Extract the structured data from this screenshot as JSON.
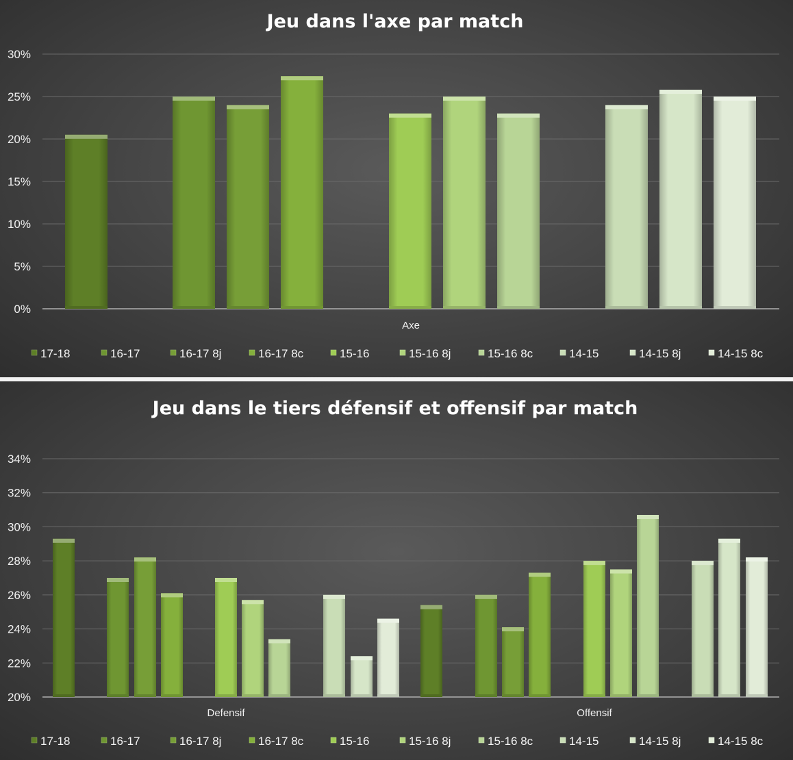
{
  "chart_data": [
    {
      "type": "bar",
      "title": "Jeu dans l'axe par match",
      "categories": [
        "Axe"
      ],
      "ylim": [
        0,
        0.3
      ],
      "yticks": [
        {
          "value": 0,
          "label": "0%"
        },
        {
          "value": 0.05,
          "label": "5%"
        },
        {
          "value": 0.1,
          "label": "10%"
        },
        {
          "value": 0.15,
          "label": "15%"
        },
        {
          "value": 0.2,
          "label": "20%"
        },
        {
          "value": 0.25,
          "label": "25%"
        },
        {
          "value": 0.3,
          "label": "30%"
        }
      ],
      "grid": true,
      "legend_position": "bottom",
      "series": [
        {
          "name": "17-18",
          "values": [
            0.205
          ],
          "color": "#5e7f27"
        },
        {
          "name": "16-17",
          "values": [
            0.25
          ],
          "color": "#6f9632"
        },
        {
          "name": "16-17 8j",
          "values": [
            0.24
          ],
          "color": "#779e37"
        },
        {
          "name": "16-17 8c",
          "values": [
            0.274
          ],
          "color": "#85b03c"
        },
        {
          "name": "15-16",
          "values": [
            0.23
          ],
          "color": "#9fcc55"
        },
        {
          "name": "15-16 8j",
          "values": [
            0.25
          ],
          "color": "#b0d47c"
        },
        {
          "name": "15-16 8c",
          "values": [
            0.23
          ],
          "color": "#b8d596"
        },
        {
          "name": "14-15",
          "values": [
            0.24
          ],
          "color": "#c9ddb6"
        },
        {
          "name": "14-15 8j",
          "values": [
            0.258
          ],
          "color": "#d6e6c8"
        },
        {
          "name": "14-15 8c",
          "values": [
            0.25
          ],
          "color": "#e2ecd8"
        }
      ]
    },
    {
      "type": "bar",
      "title": "Jeu dans le tiers défensif et offensif par match",
      "categories": [
        "Defensif",
        "Offensif"
      ],
      "ylim": [
        0.2,
        0.34
      ],
      "yticks": [
        {
          "value": 0.2,
          "label": "20%"
        },
        {
          "value": 0.22,
          "label": "22%"
        },
        {
          "value": 0.24,
          "label": "24%"
        },
        {
          "value": 0.26,
          "label": "26%"
        },
        {
          "value": 0.28,
          "label": "28%"
        },
        {
          "value": 0.3,
          "label": "30%"
        },
        {
          "value": 0.32,
          "label": "32%"
        },
        {
          "value": 0.34,
          "label": "34%"
        }
      ],
      "grid": true,
      "legend_position": "bottom",
      "series": [
        {
          "name": "17-18",
          "values": [
            0.293,
            0.254
          ],
          "color": "#5e7f27"
        },
        {
          "name": "16-17",
          "values": [
            0.27,
            0.26
          ],
          "color": "#6f9632"
        },
        {
          "name": "16-17 8j",
          "values": [
            0.282,
            0.241
          ],
          "color": "#779e37"
        },
        {
          "name": "16-17 8c",
          "values": [
            0.261,
            0.273
          ],
          "color": "#85b03c"
        },
        {
          "name": "15-16",
          "values": [
            0.27,
            0.28
          ],
          "color": "#9fcc55"
        },
        {
          "name": "15-16 8j",
          "values": [
            0.257,
            0.275
          ],
          "color": "#b0d47c"
        },
        {
          "name": "15-16 8c",
          "values": [
            0.234,
            0.307
          ],
          "color": "#b8d596"
        },
        {
          "name": "14-15",
          "values": [
            0.26,
            0.28
          ],
          "color": "#c9ddb6"
        },
        {
          "name": "14-15 8j",
          "values": [
            0.224,
            0.293
          ],
          "color": "#d6e6c8"
        },
        {
          "name": "14-15 8c",
          "values": [
            0.246,
            0.282
          ],
          "color": "#e2ecd8"
        }
      ]
    }
  ]
}
